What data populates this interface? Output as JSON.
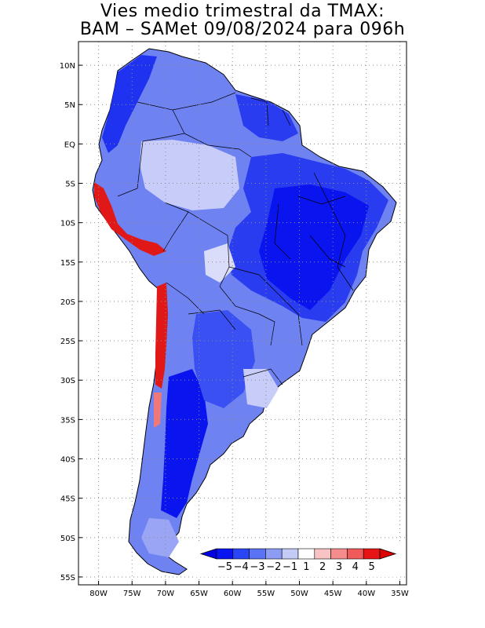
{
  "title": {
    "line1": "Vies medio trimestral da TMAX:",
    "line2": "BAM – SAMet 09/08/2024  para 096h"
  },
  "map": {
    "lon_range": [
      -83,
      -34
    ],
    "lat_range": [
      -56,
      13
    ],
    "lat_ticks": [
      {
        "value": 10,
        "label": "10N"
      },
      {
        "value": 5,
        "label": "5N"
      },
      {
        "value": 0,
        "label": "EQ"
      },
      {
        "value": -5,
        "label": "5S"
      },
      {
        "value": -10,
        "label": "10S"
      },
      {
        "value": -15,
        "label": "15S"
      },
      {
        "value": -20,
        "label": "20S"
      },
      {
        "value": -25,
        "label": "25S"
      },
      {
        "value": -30,
        "label": "30S"
      },
      {
        "value": -35,
        "label": "35S"
      },
      {
        "value": -40,
        "label": "40S"
      },
      {
        "value": -45,
        "label": "45S"
      },
      {
        "value": -50,
        "label": "50S"
      },
      {
        "value": -55,
        "label": "55S"
      }
    ],
    "lon_ticks": [
      {
        "value": -80,
        "label": "80W"
      },
      {
        "value": -75,
        "label": "75W"
      },
      {
        "value": -70,
        "label": "70W"
      },
      {
        "value": -65,
        "label": "65W"
      },
      {
        "value": -60,
        "label": "60W"
      },
      {
        "value": -55,
        "label": "55W"
      },
      {
        "value": -50,
        "label": "50W"
      },
      {
        "value": -45,
        "label": "45W"
      },
      {
        "value": -40,
        "label": "40W"
      },
      {
        "value": -35,
        "label": "35W"
      }
    ],
    "grid": true
  },
  "colorbar": {
    "labels": [
      "−5",
      "−4",
      "−3",
      "−2",
      "−1",
      "1",
      "2",
      "3",
      "4",
      "5"
    ],
    "colors": [
      "#0a14f0",
      "#2846f5",
      "#5a73f5",
      "#8c9cf5",
      "#c3cbf7",
      "#ffffff",
      "#f7c3c3",
      "#f58c8c",
      "#f05a5a",
      "#e61414"
    ],
    "under_color": "#0000e6",
    "over_color": "#dc0000"
  }
}
